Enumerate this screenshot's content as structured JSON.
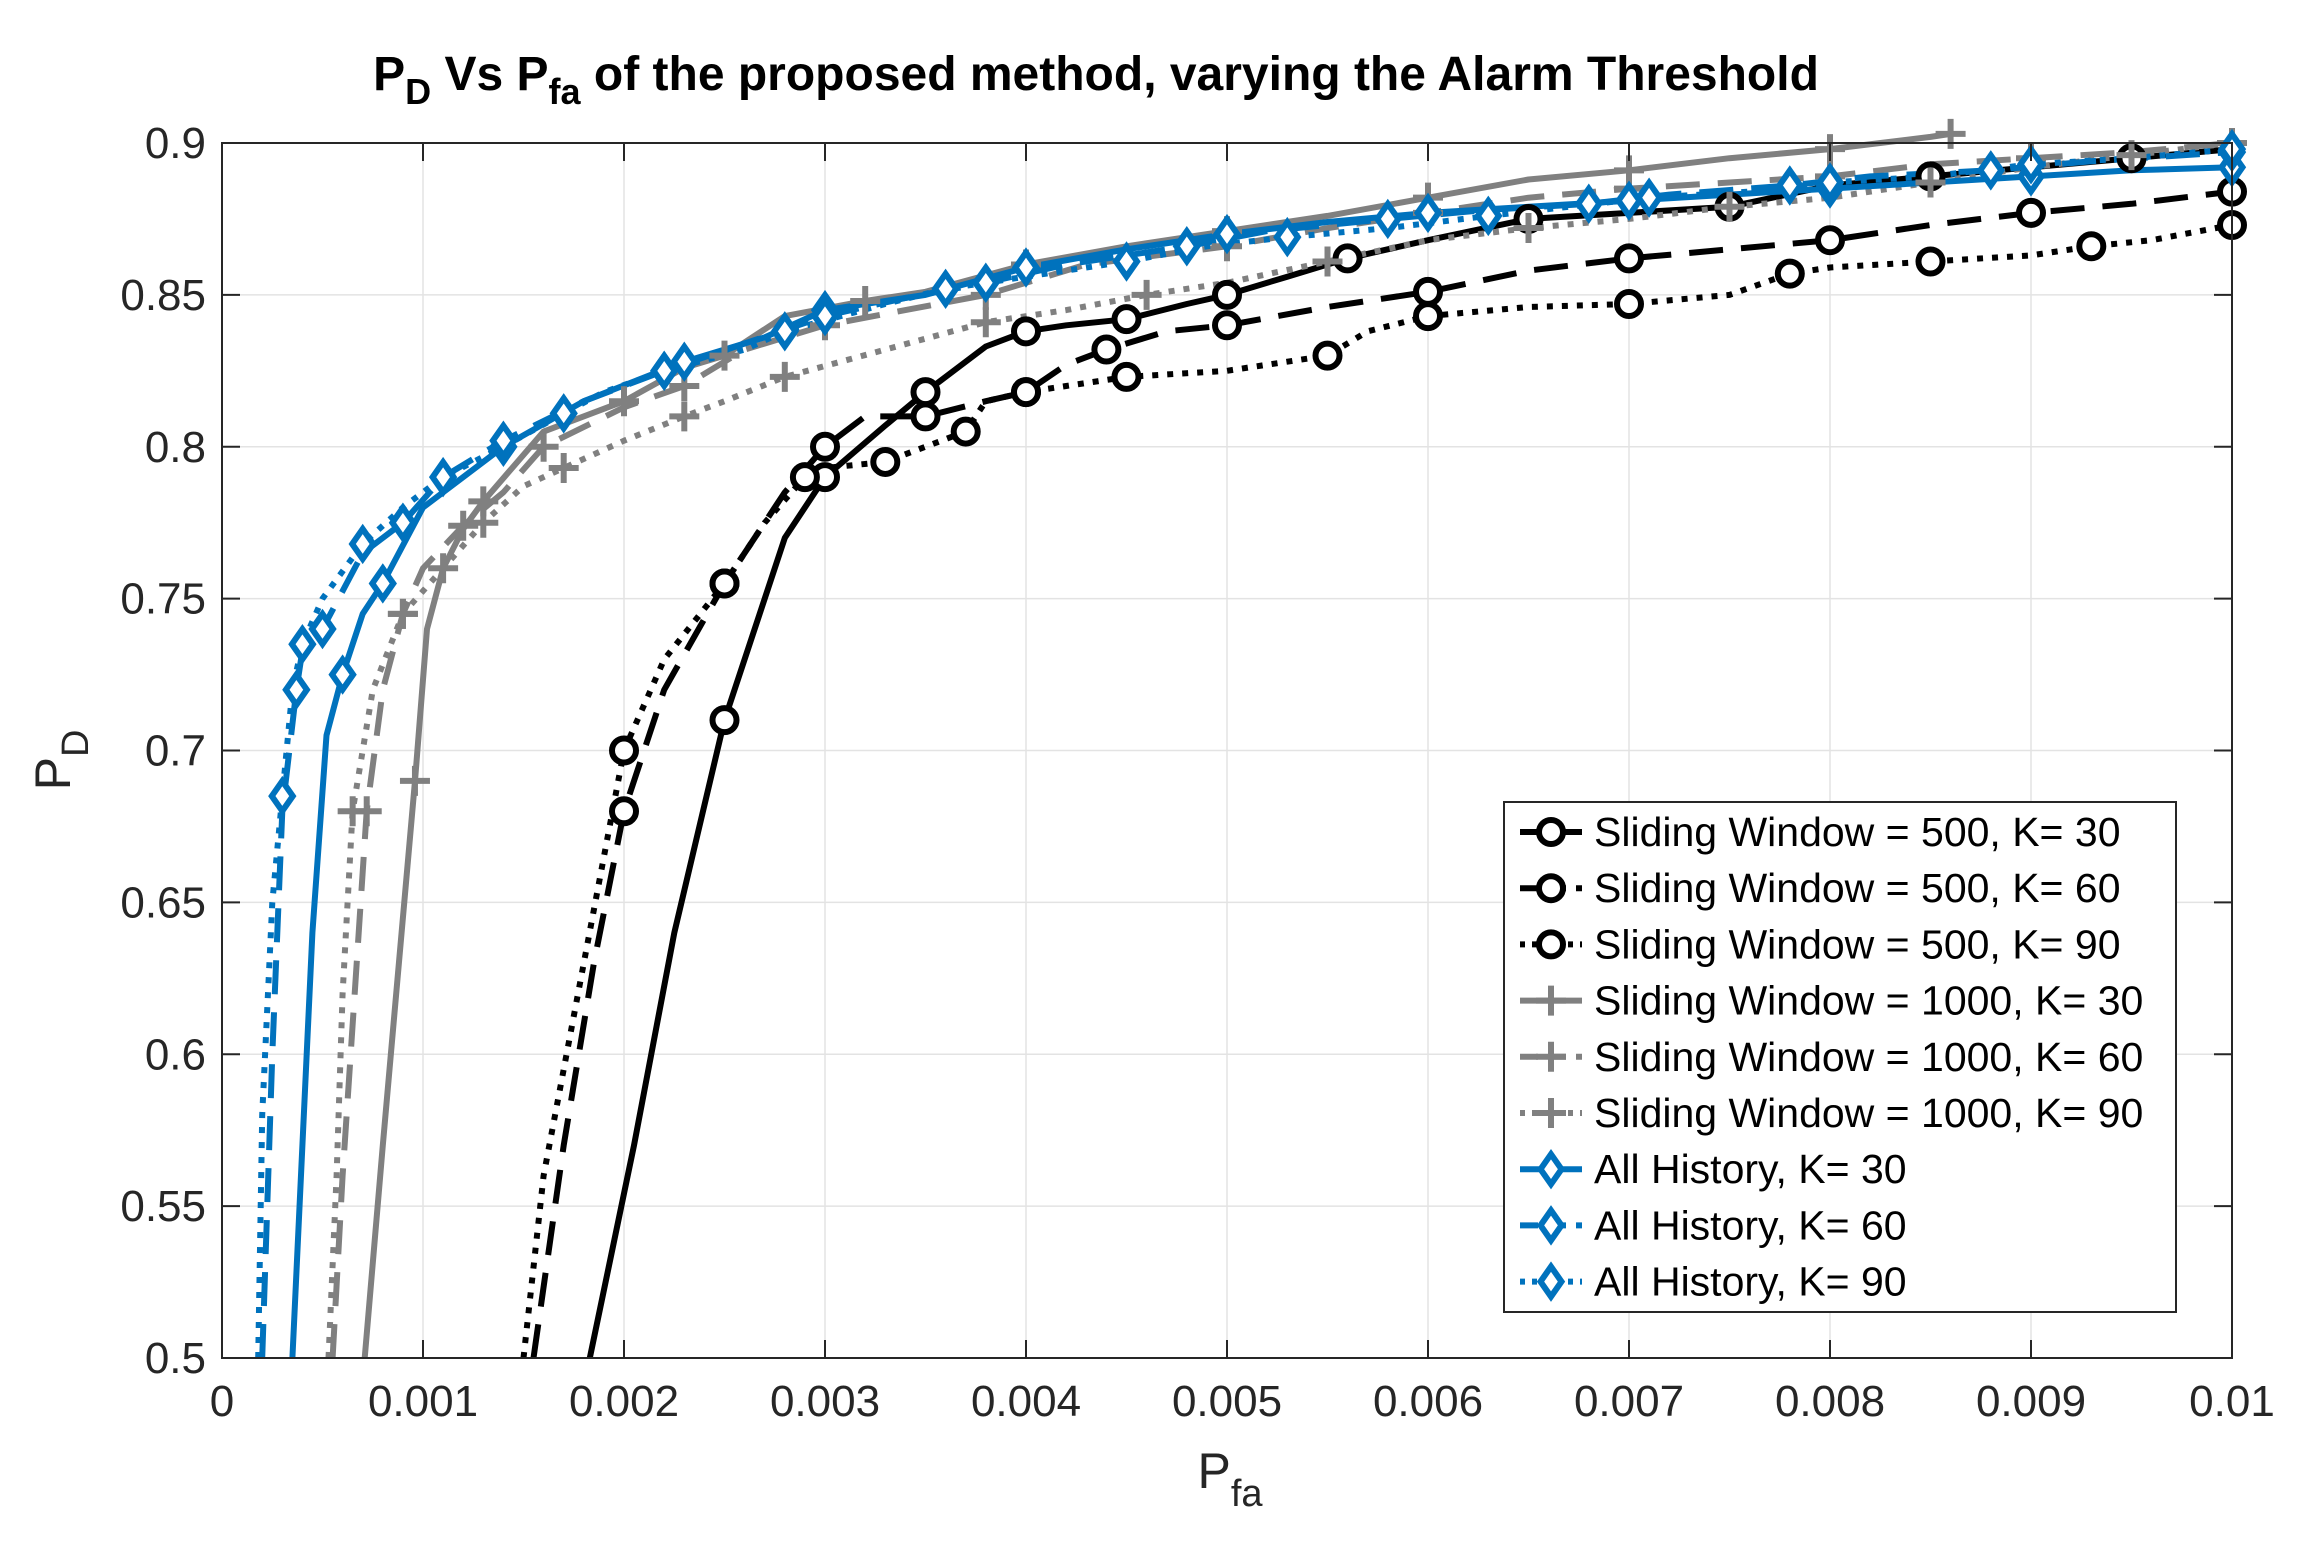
{
  "chart_data": {
    "type": "line",
    "title": {
      "main": "P",
      "main_sub": "D",
      "mid": " Vs P",
      "mid_sub": "fa",
      "rest": " of the proposed method, varying the Alarm Threshold"
    },
    "xlabel": {
      "main": "P",
      "sub": "fa"
    },
    "ylabel": {
      "main": "P",
      "sub": "D"
    },
    "xlim": [
      0,
      0.01
    ],
    "ylim": [
      0.5,
      0.9
    ],
    "x_ticks": [
      0,
      0.001,
      0.002,
      0.003,
      0.004,
      0.005,
      0.006,
      0.007,
      0.008,
      0.009,
      0.01
    ],
    "x_tick_labels": [
      "0",
      "0.001",
      "0.002",
      "0.003",
      "0.004",
      "0.005",
      "0.006",
      "0.007",
      "0.008",
      "0.009",
      "0.01"
    ],
    "y_ticks": [
      0.5,
      0.55,
      0.6,
      0.65,
      0.7,
      0.75,
      0.8,
      0.85,
      0.9
    ],
    "y_tick_labels": [
      "0.5",
      "0.55",
      "0.6",
      "0.65",
      "0.7",
      "0.75",
      "0.8",
      "0.85",
      "0.9"
    ],
    "grid": true,
    "legend_position": "bottom-right",
    "series": [
      {
        "name": "Sliding Window = 500, K= 30",
        "color": "#000000",
        "dash": "solid",
        "marker": "circle",
        "points": [
          [
            0.00183,
            0.5
          ],
          [
            0.00205,
            0.57
          ],
          [
            0.00225,
            0.64
          ],
          [
            0.0025,
            0.71
          ],
          [
            0.0028,
            0.77
          ],
          [
            0.003,
            0.79
          ],
          [
            0.0033,
            0.807
          ],
          [
            0.0035,
            0.818
          ],
          [
            0.0038,
            0.833
          ],
          [
            0.004,
            0.838
          ],
          [
            0.0042,
            0.84
          ],
          [
            0.0045,
            0.842
          ],
          [
            0.0048,
            0.847
          ],
          [
            0.005,
            0.85
          ],
          [
            0.0053,
            0.856
          ],
          [
            0.0056,
            0.862
          ],
          [
            0.006,
            0.868
          ],
          [
            0.0065,
            0.875
          ],
          [
            0.007,
            0.877
          ],
          [
            0.0075,
            0.879
          ],
          [
            0.008,
            0.886
          ],
          [
            0.0085,
            0.889
          ],
          [
            0.009,
            0.892
          ],
          [
            0.0095,
            0.895
          ],
          [
            0.01,
            0.898
          ]
        ]
      },
      {
        "name": "Sliding Window = 500, K= 60",
        "color": "#000000",
        "dash": "long",
        "marker": "circle",
        "points": [
          [
            0.00155,
            0.5
          ],
          [
            0.0017,
            0.57
          ],
          [
            0.00185,
            0.63
          ],
          [
            0.002,
            0.68
          ],
          [
            0.0022,
            0.72
          ],
          [
            0.0025,
            0.755
          ],
          [
            0.0028,
            0.785
          ],
          [
            0.003,
            0.8
          ],
          [
            0.0032,
            0.81
          ],
          [
            0.0035,
            0.81
          ],
          [
            0.0038,
            0.815
          ],
          [
            0.004,
            0.818
          ],
          [
            0.0042,
            0.827
          ],
          [
            0.0044,
            0.832
          ],
          [
            0.0047,
            0.838
          ],
          [
            0.005,
            0.84
          ],
          [
            0.0055,
            0.846
          ],
          [
            0.006,
            0.851
          ],
          [
            0.0065,
            0.858
          ],
          [
            0.007,
            0.862
          ],
          [
            0.0075,
            0.865
          ],
          [
            0.008,
            0.868
          ],
          [
            0.0085,
            0.873
          ],
          [
            0.009,
            0.877
          ],
          [
            0.0095,
            0.88
          ],
          [
            0.01,
            0.884
          ]
        ]
      },
      {
        "name": "Sliding Window = 500, K= 90",
        "color": "#000000",
        "dash": "dot",
        "marker": "circle",
        "points": [
          [
            0.0015,
            0.5
          ],
          [
            0.0016,
            0.56
          ],
          [
            0.0018,
            0.63
          ],
          [
            0.002,
            0.7
          ],
          [
            0.0022,
            0.73
          ],
          [
            0.0025,
            0.755
          ],
          [
            0.0027,
            0.775
          ],
          [
            0.0029,
            0.79
          ],
          [
            0.003,
            0.793
          ],
          [
            0.0033,
            0.795
          ],
          [
            0.0035,
            0.8
          ],
          [
            0.0037,
            0.805
          ],
          [
            0.0038,
            0.815
          ],
          [
            0.004,
            0.818
          ],
          [
            0.0042,
            0.82
          ],
          [
            0.0045,
            0.823
          ],
          [
            0.005,
            0.825
          ],
          [
            0.0055,
            0.83
          ],
          [
            0.0057,
            0.838
          ],
          [
            0.006,
            0.843
          ],
          [
            0.0065,
            0.846
          ],
          [
            0.007,
            0.847
          ],
          [
            0.0075,
            0.85
          ],
          [
            0.0078,
            0.857
          ],
          [
            0.008,
            0.859
          ],
          [
            0.0085,
            0.861
          ],
          [
            0.009,
            0.863
          ],
          [
            0.0093,
            0.866
          ],
          [
            0.0096,
            0.868
          ],
          [
            0.01,
            0.873
          ]
        ]
      },
      {
        "name": "Sliding Window = 1000, K= 30",
        "color": "#808080",
        "dash": "solid",
        "marker": "plus",
        "points": [
          [
            0.00071,
            0.5
          ],
          [
            0.0008,
            0.57
          ],
          [
            0.00088,
            0.63
          ],
          [
            0.00096,
            0.69
          ],
          [
            0.00102,
            0.74
          ],
          [
            0.0011,
            0.76
          ],
          [
            0.0012,
            0.773
          ],
          [
            0.0013,
            0.782
          ],
          [
            0.0016,
            0.805
          ],
          [
            0.002,
            0.815
          ],
          [
            0.0023,
            0.826
          ],
          [
            0.0025,
            0.83
          ],
          [
            0.0028,
            0.843
          ],
          [
            0.0032,
            0.848
          ],
          [
            0.0035,
            0.851
          ],
          [
            0.004,
            0.86
          ],
          [
            0.0045,
            0.866
          ],
          [
            0.005,
            0.871
          ],
          [
            0.0055,
            0.876
          ],
          [
            0.006,
            0.882
          ],
          [
            0.0065,
            0.888
          ],
          [
            0.007,
            0.891
          ],
          [
            0.0075,
            0.895
          ],
          [
            0.008,
            0.898
          ],
          [
            0.0085,
            0.902
          ],
          [
            0.0086,
            0.903
          ]
        ]
      },
      {
        "name": "Sliding Window = 1000, K= 60",
        "color": "#808080",
        "dash": "long",
        "marker": "plus",
        "points": [
          [
            0.00055,
            0.5
          ],
          [
            0.0006,
            0.56
          ],
          [
            0.00066,
            0.62
          ],
          [
            0.00072,
            0.68
          ],
          [
            0.0008,
            0.72
          ],
          [
            0.0009,
            0.745
          ],
          [
            0.001,
            0.76
          ],
          [
            0.0012,
            0.774
          ],
          [
            0.0014,
            0.785
          ],
          [
            0.0016,
            0.8
          ],
          [
            0.002,
            0.813
          ],
          [
            0.0023,
            0.82
          ],
          [
            0.0026,
            0.832
          ],
          [
            0.003,
            0.84
          ],
          [
            0.0034,
            0.845
          ],
          [
            0.0038,
            0.85
          ],
          [
            0.0043,
            0.86
          ],
          [
            0.005,
            0.866
          ],
          [
            0.0055,
            0.872
          ],
          [
            0.006,
            0.877
          ],
          [
            0.0065,
            0.882
          ],
          [
            0.007,
            0.885
          ],
          [
            0.0075,
            0.887
          ],
          [
            0.008,
            0.889
          ],
          [
            0.0085,
            0.893
          ],
          [
            0.009,
            0.895
          ],
          [
            0.0095,
            0.897
          ],
          [
            0.01,
            0.9
          ]
        ]
      },
      {
        "name": "Sliding Window = 1000, K= 90",
        "color": "#808080",
        "dash": "dot",
        "marker": "plus",
        "points": [
          [
            0.00053,
            0.5
          ],
          [
            0.00057,
            0.56
          ],
          [
            0.0006,
            0.62
          ],
          [
            0.00065,
            0.68
          ],
          [
            0.00075,
            0.72
          ],
          [
            0.0009,
            0.745
          ],
          [
            0.0011,
            0.76
          ],
          [
            0.0013,
            0.775
          ],
          [
            0.0015,
            0.787
          ],
          [
            0.0017,
            0.793
          ],
          [
            0.002,
            0.802
          ],
          [
            0.0023,
            0.81
          ],
          [
            0.0025,
            0.815
          ],
          [
            0.0028,
            0.823
          ],
          [
            0.0033,
            0.832
          ],
          [
            0.0038,
            0.841
          ],
          [
            0.0042,
            0.845
          ],
          [
            0.0046,
            0.85
          ],
          [
            0.005,
            0.854
          ],
          [
            0.0055,
            0.861
          ],
          [
            0.006,
            0.868
          ],
          [
            0.0065,
            0.872
          ],
          [
            0.007,
            0.875
          ],
          [
            0.0075,
            0.879
          ],
          [
            0.008,
            0.882
          ],
          [
            0.0085,
            0.887
          ],
          [
            0.009,
            0.892
          ],
          [
            0.0095,
            0.896
          ],
          [
            0.01,
            0.9
          ]
        ]
      },
      {
        "name": "All History, K= 30",
        "color": "#0072BD",
        "dash": "solid",
        "marker": "diamond",
        "points": [
          [
            0.00035,
            0.5
          ],
          [
            0.00045,
            0.64
          ],
          [
            0.00052,
            0.705
          ],
          [
            0.0006,
            0.725
          ],
          [
            0.0007,
            0.745
          ],
          [
            0.0008,
            0.755
          ],
          [
            0.001,
            0.78
          ],
          [
            0.0014,
            0.8
          ],
          [
            0.0018,
            0.815
          ],
          [
            0.0023,
            0.828
          ],
          [
            0.0027,
            0.836
          ],
          [
            0.003,
            0.845
          ],
          [
            0.0035,
            0.85
          ],
          [
            0.004,
            0.859
          ],
          [
            0.0045,
            0.865
          ],
          [
            0.005,
            0.87
          ],
          [
            0.0055,
            0.874
          ],
          [
            0.006,
            0.877
          ],
          [
            0.0065,
            0.879
          ],
          [
            0.007,
            0.881
          ],
          [
            0.0075,
            0.883
          ],
          [
            0.008,
            0.885
          ],
          [
            0.0085,
            0.887
          ],
          [
            0.009,
            0.889
          ],
          [
            0.0095,
            0.891
          ],
          [
            0.01,
            0.892
          ]
        ]
      },
      {
        "name": "All History, K= 60",
        "color": "#0072BD",
        "dash": "long",
        "marker": "diamond",
        "points": [
          [
            0.0002,
            0.5
          ],
          [
            0.00025,
            0.6
          ],
          [
            0.0003,
            0.68
          ],
          [
            0.00037,
            0.72
          ],
          [
            0.0004,
            0.733
          ],
          [
            0.0005,
            0.74
          ],
          [
            0.0007,
            0.765
          ],
          [
            0.0009,
            0.775
          ],
          [
            0.0011,
            0.79
          ],
          [
            0.0014,
            0.802
          ],
          [
            0.0018,
            0.815
          ],
          [
            0.0022,
            0.825
          ],
          [
            0.0026,
            0.834
          ],
          [
            0.003,
            0.843
          ],
          [
            0.0034,
            0.849
          ],
          [
            0.0038,
            0.854
          ],
          [
            0.0042,
            0.86
          ],
          [
            0.0048,
            0.866
          ],
          [
            0.0052,
            0.871
          ],
          [
            0.0058,
            0.875
          ],
          [
            0.0063,
            0.878
          ],
          [
            0.0068,
            0.88
          ],
          [
            0.0072,
            0.883
          ],
          [
            0.0078,
            0.886
          ],
          [
            0.0082,
            0.889
          ],
          [
            0.0088,
            0.891
          ],
          [
            0.0093,
            0.894
          ],
          [
            0.01,
            0.897
          ]
        ]
      },
      {
        "name": "All History, K= 90",
        "color": "#0072BD",
        "dash": "dot",
        "marker": "diamond",
        "points": [
          [
            0.00018,
            0.5
          ],
          [
            0.0002,
            0.58
          ],
          [
            0.00025,
            0.65
          ],
          [
            0.0003,
            0.685
          ],
          [
            0.00035,
            0.72
          ],
          [
            0.0004,
            0.735
          ],
          [
            0.0005,
            0.75
          ],
          [
            0.0007,
            0.768
          ],
          [
            0.0009,
            0.78
          ],
          [
            0.0011,
            0.79
          ],
          [
            0.0014,
            0.8
          ],
          [
            0.0017,
            0.811
          ],
          [
            0.0019,
            0.818
          ],
          [
            0.0022,
            0.825
          ],
          [
            0.0026,
            0.832
          ],
          [
            0.0028,
            0.838
          ],
          [
            0.0033,
            0.847
          ],
          [
            0.0036,
            0.852
          ],
          [
            0.0041,
            0.857
          ],
          [
            0.0045,
            0.861
          ],
          [
            0.0049,
            0.866
          ],
          [
            0.0053,
            0.869
          ],
          [
            0.0058,
            0.872
          ],
          [
            0.0063,
            0.876
          ],
          [
            0.0067,
            0.879
          ],
          [
            0.0071,
            0.882
          ],
          [
            0.0076,
            0.884
          ],
          [
            0.008,
            0.887
          ],
          [
            0.0085,
            0.889
          ],
          [
            0.009,
            0.893
          ],
          [
            0.0095,
            0.895
          ],
          [
            0.01,
            0.898
          ]
        ]
      }
    ]
  }
}
